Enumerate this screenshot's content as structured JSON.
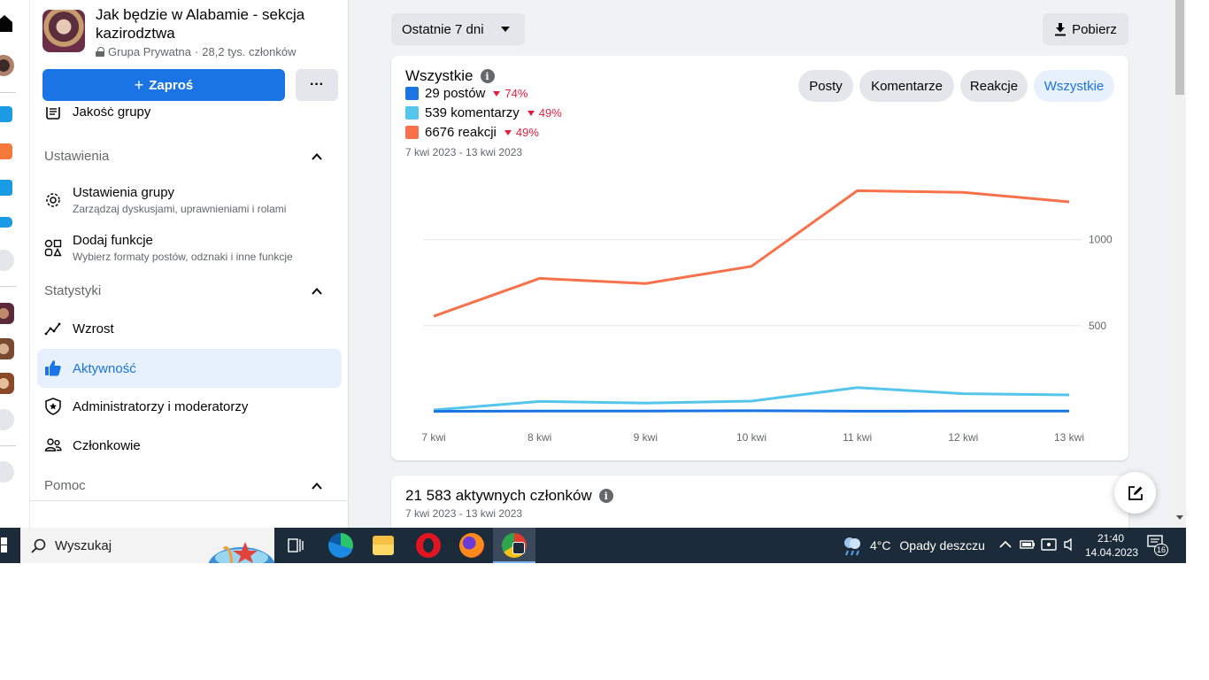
{
  "group": {
    "name": "Jak będzie w Alabamie - sekcja kazirodztwa",
    "privacy": "Grupa Prywatna",
    "members": "28,2 tys. członków",
    "invite_label": "Zaproś",
    "more_label": "···"
  },
  "sidebar": {
    "partial_item": "Jakość grupy",
    "sections": [
      {
        "title": "Ustawienia"
      },
      {
        "title": "Statystyki"
      },
      {
        "title": "Pomoc"
      }
    ],
    "settings_items": [
      {
        "label": "Ustawienia grupy",
        "desc": "Zarządzaj dyskusjami, uprawnieniami i rolami",
        "icon": "gear-icon"
      },
      {
        "label": "Dodaj funkcje",
        "desc": "Wybierz formaty postów, odznaki i inne funkcje",
        "icon": "shapes-icon"
      }
    ],
    "stats_items": [
      {
        "label": "Wzrost",
        "icon": "growth-icon"
      },
      {
        "label": "Aktywność",
        "icon": "thumbs-up-icon",
        "active": true
      },
      {
        "label": "Administratorzy i moderatorzy",
        "icon": "shield-star-icon"
      },
      {
        "label": "Członkowie",
        "icon": "members-icon"
      }
    ]
  },
  "toolbar": {
    "range_label": "Ostatnie 7 dni",
    "download_label": "Pobierz"
  },
  "activity_card": {
    "title": "Wszystkie",
    "legend": [
      {
        "label": "29 postów",
        "delta": "74%",
        "color": "#1b74e4"
      },
      {
        "label": "539 komentarzy",
        "delta": "49%",
        "color": "#56c5ec"
      },
      {
        "label": "6676 reakcji",
        "delta": "49%",
        "color": "#f7714b"
      }
    ],
    "date_range": "7 kwi 2023 - 13 kwi 2023",
    "tabs": [
      "Posty",
      "Komentarze",
      "Reakcje",
      "Wszystkie"
    ],
    "active_tab": "Wszystkie"
  },
  "members_card": {
    "title": "21 583 aktywnych członków",
    "date_range": "7 kwi 2023 - 13 kwi 2023"
  },
  "chart_data": {
    "type": "line",
    "categories": [
      "7 kwi",
      "8 kwi",
      "9 kwi",
      "10 kwi",
      "11 kwi",
      "12 kwi",
      "13 kwi"
    ],
    "series": [
      {
        "name": "reakcji",
        "color": "#f7714b",
        "values": [
          555,
          775,
          745,
          845,
          1285,
          1275,
          1220
        ]
      },
      {
        "name": "komentarzy",
        "color": "#56c5ec",
        "values": [
          10,
          60,
          50,
          62,
          140,
          105,
          98
        ]
      },
      {
        "name": "postów",
        "color": "#1b74e4",
        "values": [
          2,
          4,
          4,
          6,
          3,
          4,
          4
        ]
      }
    ],
    "yticks": [
      500,
      1000
    ],
    "ylim": [
      0,
      1400
    ],
    "grid": true
  },
  "taskbar": {
    "search_placeholder": "Wyszukaj",
    "weather_temp": "4°C",
    "weather_desc": "Opady deszczu",
    "time": "21:40",
    "date": "14.04.2023",
    "notifications": "16"
  }
}
